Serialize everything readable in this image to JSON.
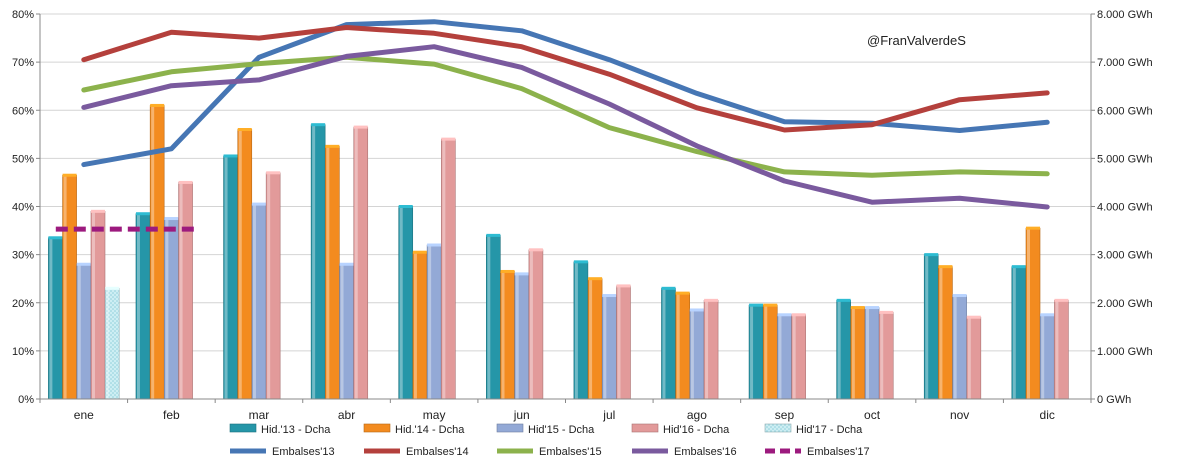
{
  "chart_data": {
    "type": "bar+line",
    "categories": [
      "ene",
      "feb",
      "mar",
      "abr",
      "may",
      "jun",
      "jul",
      "ago",
      "sep",
      "oct",
      "nov",
      "dic"
    ],
    "annotation": "@FranValverdeS",
    "left_axis": {
      "min": 0,
      "max": 80,
      "step": 10,
      "tick_suffix": "%",
      "tick_labels": [
        "0%",
        "10%",
        "20%",
        "30%",
        "40%",
        "50%",
        "60%",
        "70%",
        "80%"
      ]
    },
    "right_axis": {
      "min": 0,
      "max": 8000,
      "step": 1000,
      "tick_labels": [
        "0 GWh",
        "1.000 GWh",
        "2.000 GWh",
        "3.000 GWh",
        "4.000 GWh",
        "5.000 GWh",
        "6.000 GWh",
        "7.000 GWh",
        "8.000 GWh"
      ]
    },
    "grid": true,
    "legend_position": "bottom",
    "bar_series": [
      {
        "name": "Hid.'13 - Dcha",
        "axis": "left",
        "color": "#2596a8",
        "values": [
          33.5,
          38.5,
          50.5,
          57,
          40,
          34,
          28.5,
          23,
          19.5,
          20.5,
          30,
          27.5
        ]
      },
      {
        "name": "Hid.'14 - Dcha",
        "axis": "left",
        "color": "#f38b1f",
        "values": [
          46.5,
          61,
          56,
          52.5,
          30.5,
          26.5,
          25,
          22,
          19.5,
          19,
          27.5,
          35.5
        ]
      },
      {
        "name": "Hid'15 - Dcha",
        "axis": "left",
        "color": "#93a9d6",
        "values": [
          28,
          37.5,
          40.5,
          28,
          32,
          26,
          21.5,
          18.5,
          17.5,
          19,
          21.5,
          17.5
        ]
      },
      {
        "name": "Hid'16 - Dcha",
        "axis": "left",
        "color": "#e29a9a",
        "values": [
          39,
          45,
          47,
          56.5,
          54,
          31,
          23.5,
          20.5,
          17.5,
          18,
          17,
          20.5
        ]
      },
      {
        "name": "Hid'17 - Dcha",
        "axis": "left",
        "color": "#b8e3ea",
        "values": [
          23,
          null,
          null,
          null,
          null,
          null,
          null,
          null,
          null,
          null,
          null,
          null
        ]
      }
    ],
    "line_series": [
      {
        "name": "Embalses'13",
        "axis": "right",
        "color": "#4676b4",
        "dashed": false,
        "values": [
          4870,
          5200,
          7100,
          7780,
          7840,
          7650,
          7050,
          6350,
          5760,
          5730,
          5580,
          5750
        ]
      },
      {
        "name": "Embalses'14",
        "axis": "right",
        "color": "#b4403c",
        "dashed": false,
        "values": [
          7050,
          7620,
          7500,
          7720,
          7600,
          7320,
          6750,
          6050,
          5590,
          5700,
          6220,
          6360
        ]
      },
      {
        "name": "Embalses'15",
        "axis": "right",
        "color": "#8cb24c",
        "dashed": false,
        "values": [
          6420,
          6800,
          6970,
          7100,
          6960,
          6450,
          5640,
          5140,
          4720,
          4650,
          4720,
          4680
        ]
      },
      {
        "name": "Embalses'16",
        "axis": "right",
        "color": "#7a5a9e",
        "dashed": false,
        "values": [
          6060,
          6510,
          6630,
          7120,
          7320,
          6890,
          6130,
          5260,
          4530,
          4090,
          4170,
          3990
        ]
      },
      {
        "name": "Embalses'17",
        "axis": "right",
        "color": "#9c1a7e",
        "dashed": true,
        "values": [
          3530,
          3530,
          null,
          null,
          null,
          null,
          null,
          null,
          null,
          null,
          null,
          null
        ]
      }
    ]
  }
}
